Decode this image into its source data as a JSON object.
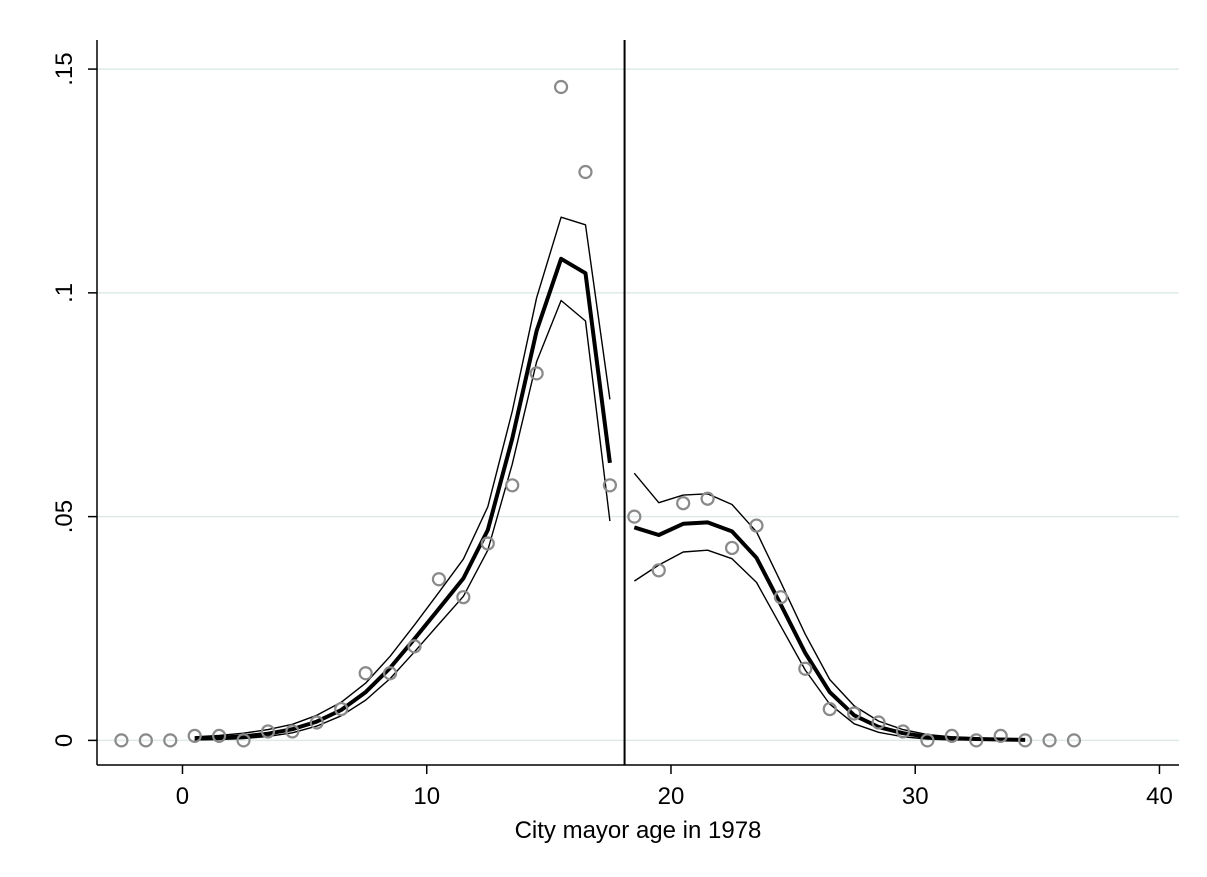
{
  "chart_data": {
    "type": "scatter",
    "title": "",
    "xlabel": "City mayor age in 1978",
    "ylabel": "",
    "xlim": [
      -3.5,
      40.8
    ],
    "ylim": [
      -0.0055,
      0.1565
    ],
    "x_ticks": [
      0,
      10,
      20,
      30,
      40
    ],
    "x_tick_labels": [
      "0",
      "10",
      "20",
      "30",
      "40"
    ],
    "y_ticks": [
      0,
      0.05,
      0.1,
      0.15
    ],
    "y_tick_labels": [
      "0",
      ".05",
      ".1",
      ".15"
    ],
    "grid": "horizontal",
    "cutoff_x": 18.1,
    "colors": {
      "markers": "#8a8a8a",
      "fit_line": "#000000",
      "ci_lines": "#000000",
      "grid": "#deeaea"
    },
    "points": {
      "x": [
        -2.5,
        -1.5,
        -0.5,
        0.5,
        1.5,
        2.5,
        3.5,
        4.5,
        5.5,
        6.5,
        7.5,
        8.5,
        9.5,
        10.5,
        11.5,
        12.5,
        13.5,
        14.5,
        15.5,
        16.5,
        17.5,
        18.5,
        19.5,
        20.5,
        21.5,
        22.5,
        23.5,
        24.5,
        25.5,
        26.5,
        27.5,
        28.5,
        29.5,
        30.5,
        31.5,
        32.5,
        33.5,
        34.5,
        35.5,
        36.5
      ],
      "y": [
        0,
        0,
        0,
        0.001,
        0.001,
        0,
        0.002,
        0.002,
        0.004,
        0.007,
        0.015,
        0.015,
        0.021,
        0.036,
        0.032,
        0.044,
        0.057,
        0.082,
        0.146,
        0.127,
        0.057,
        0.05,
        0.038,
        0.053,
        0.054,
        0.043,
        0.048,
        0.032,
        0.016,
        0.007,
        0.006,
        0.004,
        0.002,
        0,
        0.001,
        0,
        0.001,
        0,
        0,
        0
      ]
    },
    "left_fit": {
      "x": [
        0.5,
        1.5,
        2.5,
        3.5,
        4.5,
        5.5,
        6.5,
        7.5,
        8.5,
        9.5,
        10.5,
        11.5,
        12.5,
        13.5,
        14.5,
        15.5,
        16.5,
        17.5
      ],
      "y": [
        0.0004,
        0.0006,
        0.0009,
        0.0015,
        0.0025,
        0.0042,
        0.0068,
        0.0108,
        0.0162,
        0.0227,
        0.0294,
        0.0362,
        0.047,
        0.0674,
        0.0915,
        0.1076,
        0.1044,
        0.062
      ],
      "ci_lower": [
        0.0001,
        0.0002,
        0.0004,
        0.0009,
        0.0017,
        0.0032,
        0.0055,
        0.009,
        0.0138,
        0.0198,
        0.026,
        0.0322,
        0.0425,
        0.0617,
        0.0846,
        0.0983,
        0.0937,
        0.049
      ],
      "ci_upper": [
        0.0008,
        0.0011,
        0.0016,
        0.0024,
        0.0036,
        0.0056,
        0.0085,
        0.0128,
        0.0188,
        0.0258,
        0.0331,
        0.0405,
        0.0522,
        0.0735,
        0.0989,
        0.1169,
        0.1152,
        0.0762
      ]
    },
    "right_fit": {
      "x": [
        18.5,
        19.5,
        20.5,
        21.5,
        22.5,
        23.5,
        24.5,
        25.5,
        26.5,
        27.5,
        28.5,
        29.5,
        30.5,
        31.5,
        32.5,
        33.5,
        34.5
      ],
      "y": [
        0.0476,
        0.0459,
        0.0484,
        0.0487,
        0.0467,
        0.0408,
        0.0303,
        0.0195,
        0.0108,
        0.0056,
        0.003,
        0.0016,
        0.0008,
        0.0005,
        0.0003,
        0.0002,
        0.0001
      ],
      "ci_lower": [
        0.0356,
        0.0392,
        0.0421,
        0.0425,
        0.0406,
        0.0353,
        0.0255,
        0.0157,
        0.0081,
        0.0037,
        0.0018,
        0.0008,
        0.0003,
        0.0001,
        0.0001,
        0.0,
        0.0
      ],
      "ci_upper": [
        0.0597,
        0.0531,
        0.0548,
        0.0551,
        0.0527,
        0.0466,
        0.0353,
        0.0237,
        0.0136,
        0.0077,
        0.0043,
        0.0024,
        0.0013,
        0.0008,
        0.0005,
        0.0004,
        0.0002
      ]
    }
  }
}
